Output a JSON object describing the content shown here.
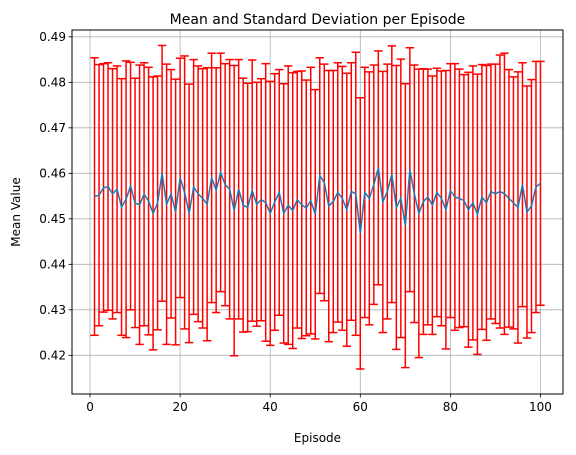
{
  "chart_data": {
    "type": "line",
    "title": "Mean and Standard Deviation per Episode",
    "xlabel": "Episode",
    "ylabel": "Mean Value",
    "xlim": [
      -4,
      105
    ],
    "ylim": [
      0.4115,
      0.4915
    ],
    "xticks": [
      "0",
      "20",
      "40",
      "60",
      "80",
      "100"
    ],
    "yticks": [
      "0.42",
      "0.43",
      "0.44",
      "0.45",
      "0.46",
      "0.47",
      "0.48",
      "0.49"
    ],
    "grid": true,
    "line_color": "#1f77b4",
    "error_color": "#ff0000",
    "series": [
      {
        "x": [
          1,
          2,
          3,
          4,
          5,
          6,
          7,
          8,
          9,
          10,
          11,
          12,
          13,
          14,
          15,
          16,
          17,
          18,
          19,
          20,
          21,
          22,
          23,
          24,
          25,
          26,
          27,
          28,
          29,
          30,
          31,
          32,
          33,
          34,
          35,
          36,
          37,
          38,
          39,
          40,
          41,
          42,
          43,
          44,
          45,
          46,
          47,
          48,
          49,
          50,
          51,
          52,
          53,
          54,
          55,
          56,
          57,
          58,
          59,
          60,
          61,
          62,
          63,
          64,
          65,
          66,
          67,
          68,
          69,
          70,
          71,
          72,
          73,
          74,
          75,
          76,
          77,
          78,
          79,
          80,
          81,
          82,
          83,
          84,
          85,
          86,
          87,
          88,
          89,
          90,
          91,
          92,
          93,
          94,
          95,
          96,
          97,
          98,
          99,
          100
        ],
        "values": [
          0.4549,
          0.4552,
          0.4568,
          0.4571,
          0.4555,
          0.4565,
          0.4526,
          0.4543,
          0.4572,
          0.4535,
          0.4531,
          0.4554,
          0.4539,
          0.4512,
          0.4535,
          0.46,
          0.4532,
          0.4555,
          0.4515,
          0.459,
          0.4558,
          0.4512,
          0.457,
          0.4555,
          0.4545,
          0.4532,
          0.459,
          0.4563,
          0.4602,
          0.4575,
          0.4565,
          0.4518,
          0.4565,
          0.453,
          0.4525,
          0.4562,
          0.4532,
          0.4542,
          0.4536,
          0.4512,
          0.4537,
          0.4558,
          0.4512,
          0.453,
          0.4518,
          0.4542,
          0.4531,
          0.4524,
          0.454,
          0.451,
          0.4595,
          0.458,
          0.4528,
          0.4538,
          0.4558,
          0.4545,
          0.452,
          0.456,
          0.4555,
          0.4468,
          0.4558,
          0.4545,
          0.4575,
          0.4612,
          0.4537,
          0.456,
          0.4598,
          0.4525,
          0.4545,
          0.4485,
          0.4608,
          0.4555,
          0.4512,
          0.4538,
          0.4548,
          0.453,
          0.4558,
          0.4545,
          0.452,
          0.4562,
          0.4548,
          0.4545,
          0.454,
          0.452,
          0.4535,
          0.451,
          0.4548,
          0.4535,
          0.456,
          0.4555,
          0.456,
          0.4555,
          0.4545,
          0.4535,
          0.4525,
          0.4575,
          0.4515,
          0.4528,
          0.457,
          0.4578
        ],
        "errors": [
          0.0305,
          0.0287,
          0.0273,
          0.0272,
          0.0275,
          0.0271,
          0.0282,
          0.0304,
          0.0272,
          0.0274,
          0.0307,
          0.0289,
          0.0294,
          0.03,
          0.0279,
          0.0281,
          0.0308,
          0.0273,
          0.0292,
          0.0263,
          0.03,
          0.0284,
          0.028,
          0.0281,
          0.0285,
          0.03,
          0.0274,
          0.0269,
          0.0262,
          0.0266,
          0.0285,
          0.0319,
          0.0285,
          0.0279,
          0.0273,
          0.0287,
          0.0268,
          0.0266,
          0.0305,
          0.029,
          0.0282,
          0.027,
          0.0285,
          0.0306,
          0.0303,
          0.0282,
          0.0294,
          0.0281,
          0.0293,
          0.0274,
          0.0259,
          0.026,
          0.0298,
          0.0288,
          0.0285,
          0.029,
          0.03,
          0.0283,
          0.0311,
          0.0298,
          0.0275,
          0.0278,
          0.0263,
          0.0257,
          0.0287,
          0.028,
          0.0282,
          0.0312,
          0.0306,
          0.0312,
          0.0268,
          0.0283,
          0.0317,
          0.0292,
          0.0281,
          0.0284,
          0.0273,
          0.028,
          0.0306,
          0.0279,
          0.0293,
          0.0284,
          0.0277,
          0.0302,
          0.0301,
          0.0308,
          0.0291,
          0.0302,
          0.028,
          0.0285,
          0.03,
          0.0309,
          0.0283,
          0.0277,
          0.0298,
          0.0268,
          0.0277,
          0.0278,
          0.0276,
          0.0268
        ]
      }
    ]
  }
}
